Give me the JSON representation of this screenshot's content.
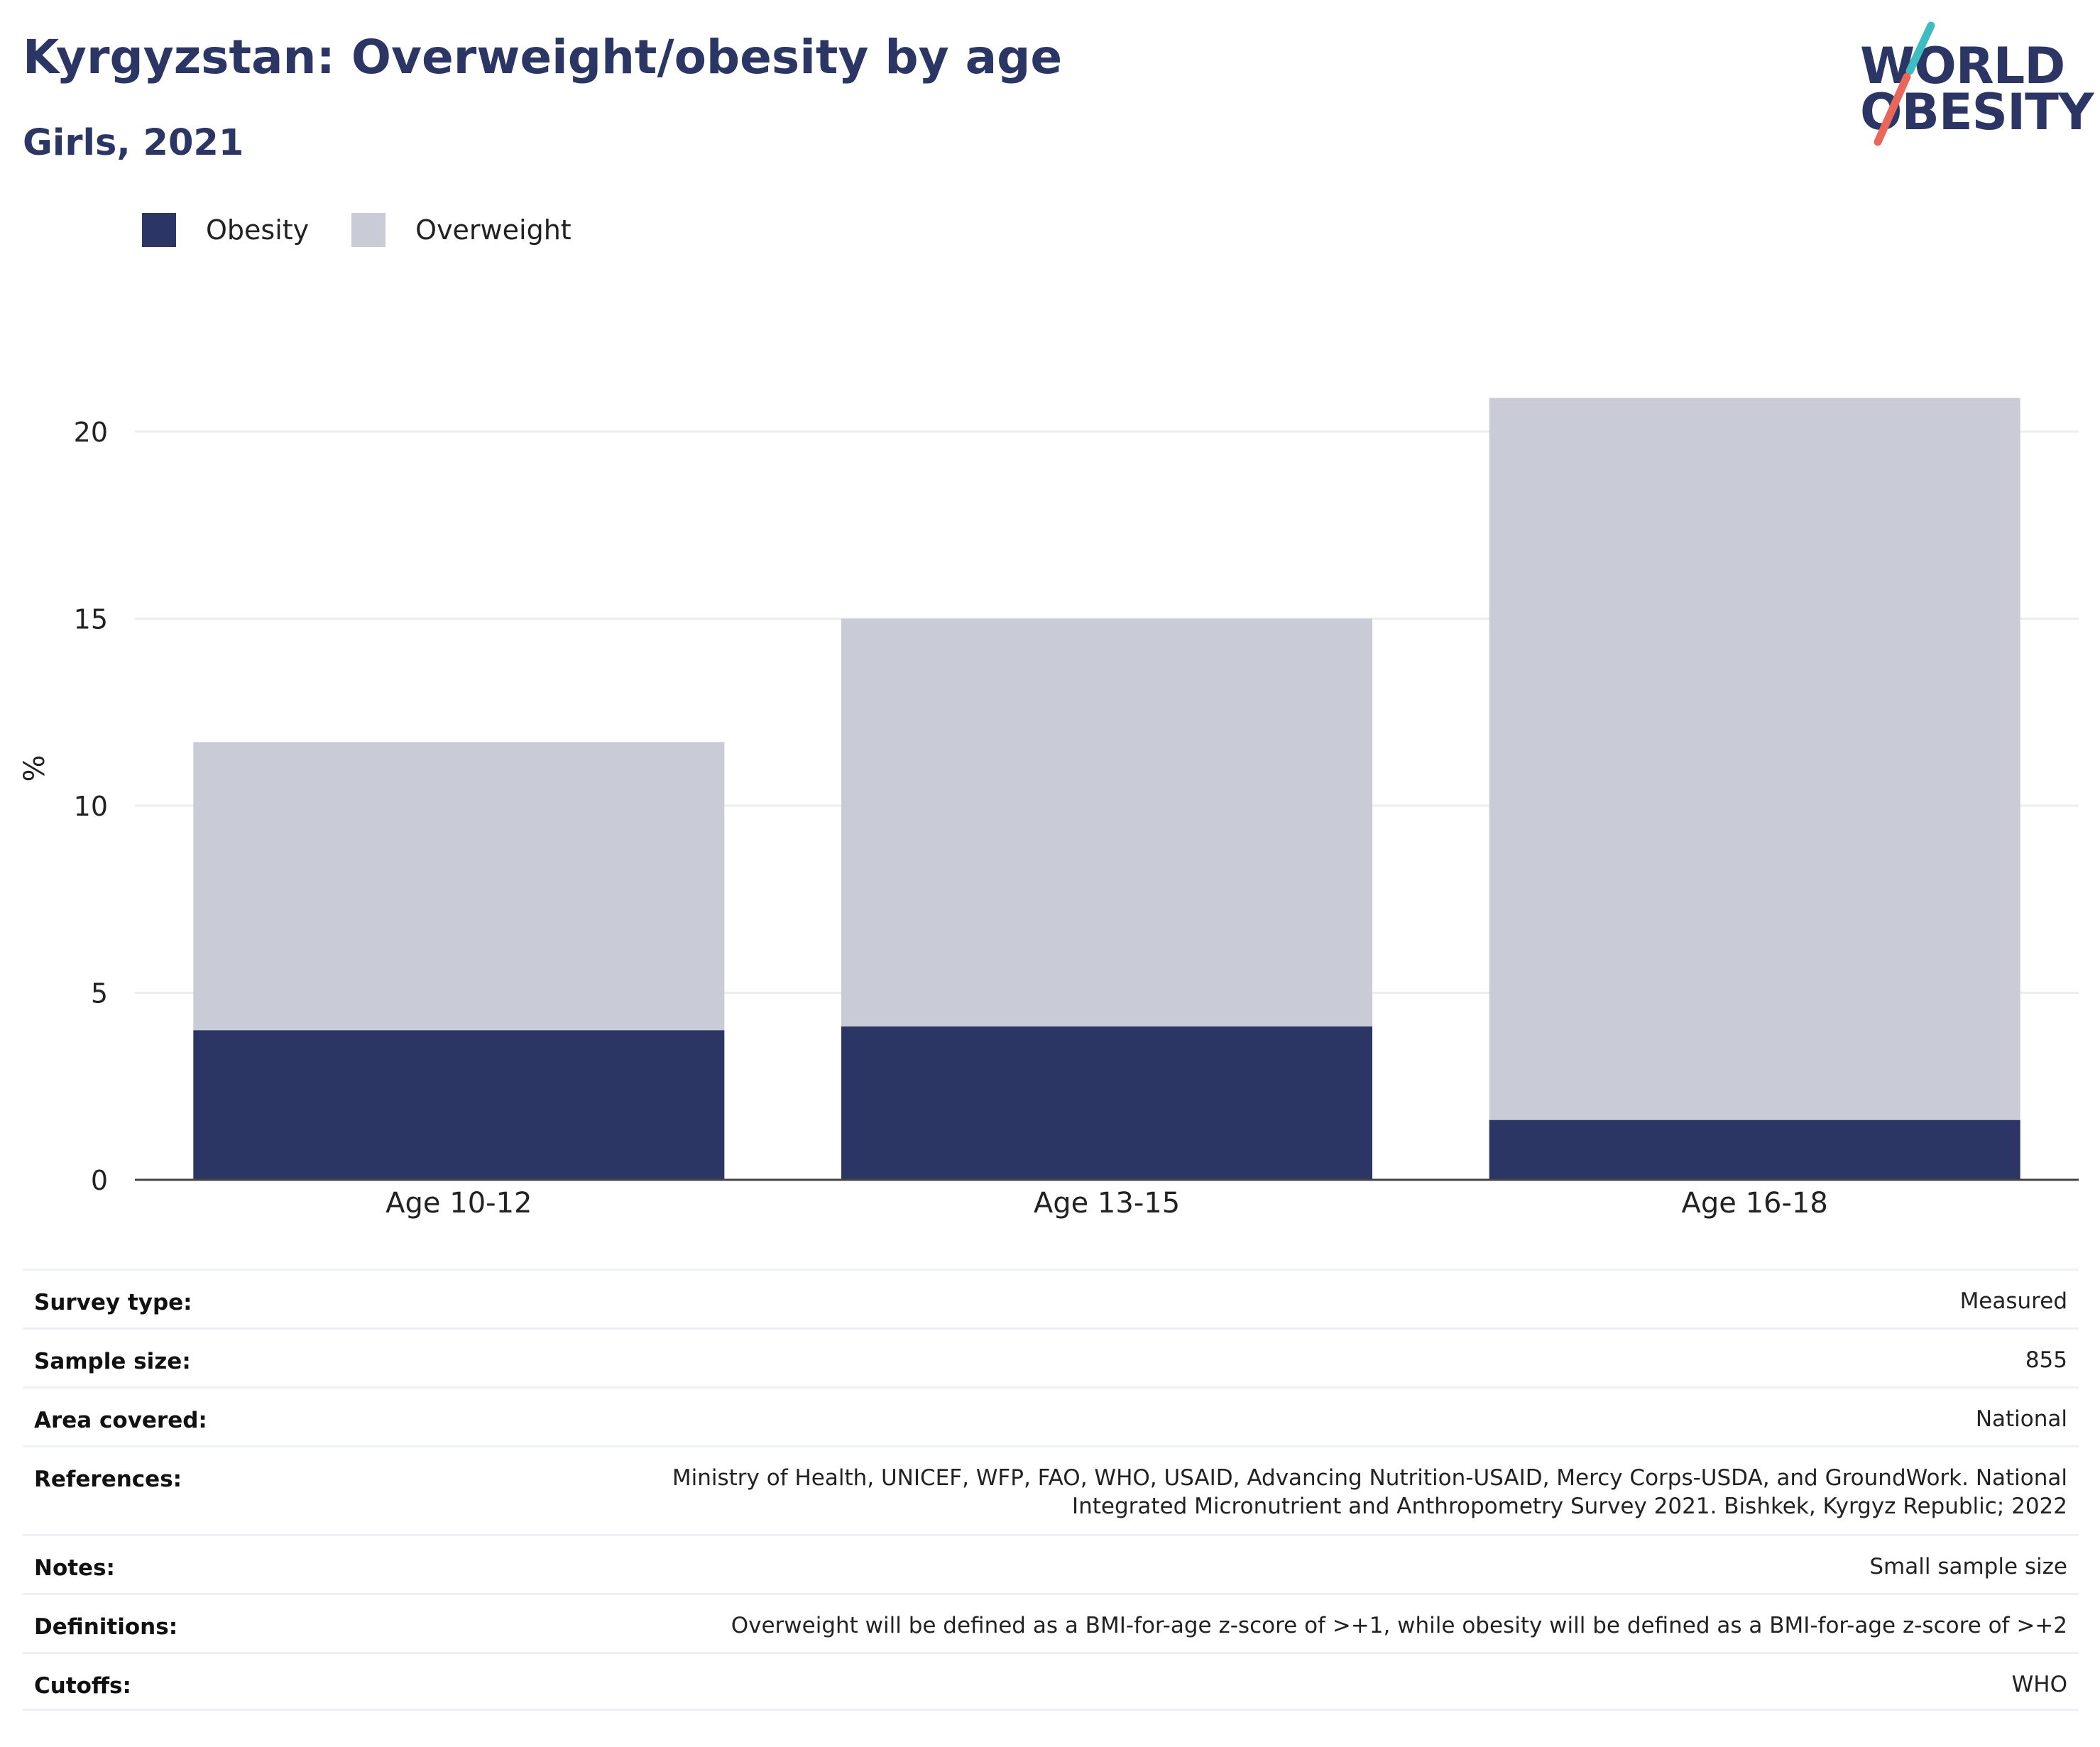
{
  "header": {
    "title": "Kyrgyzstan: Overweight/obesity by age",
    "subtitle": "Girls, 2021",
    "logo_line1": "WORLD",
    "logo_line2": "OBESITY"
  },
  "colors": {
    "obesity": "#2b3664",
    "overweight": "#c9cbd7",
    "logo_teal": "#3dbdc1",
    "logo_coral": "#e8665a"
  },
  "legend": {
    "items": [
      {
        "label": "Obesity",
        "color": "#2b3664"
      },
      {
        "label": "Overweight",
        "color": "#c9cbd7"
      }
    ]
  },
  "chart_data": {
    "type": "bar",
    "stacked": true,
    "categories": [
      "Age 10-12",
      "Age 13-15",
      "Age 16-18"
    ],
    "series": [
      {
        "name": "Obesity",
        "values": [
          4.0,
          4.1,
          1.6
        ]
      },
      {
        "name": "Overweight",
        "values": [
          7.7,
          10.9,
          19.3
        ]
      }
    ],
    "totals": [
      11.7,
      15.0,
      20.9
    ],
    "ylabel": "%",
    "ylim": [
      0,
      22
    ],
    "yticks": [
      0,
      5,
      10,
      15,
      20
    ],
    "grid": true,
    "legend_position": "top-left"
  },
  "info": {
    "rows": [
      {
        "label": "Survey type:",
        "value": "Measured"
      },
      {
        "label": "Sample size:",
        "value": "855"
      },
      {
        "label": "Area covered:",
        "value": "National"
      },
      {
        "label": "References:",
        "value": "Ministry of Health, UNICEF, WFP, FAO, WHO, USAID, Advancing Nutrition-USAID, Mercy Corps-USDA, and GroundWork. National Integrated Micronutrient and Anthropometry Survey 2021. Bishkek, Kyrgyz Republic; 2022"
      },
      {
        "label": "Notes:",
        "value": "Small sample size"
      },
      {
        "label": "Definitions:",
        "value": "Overweight will be defined as a BMI-for-age z-score of >+1, while obesity will be defined as a BMI-for-age z-score of >+2"
      },
      {
        "label": "Cutoffs:",
        "value": "WHO"
      }
    ]
  }
}
